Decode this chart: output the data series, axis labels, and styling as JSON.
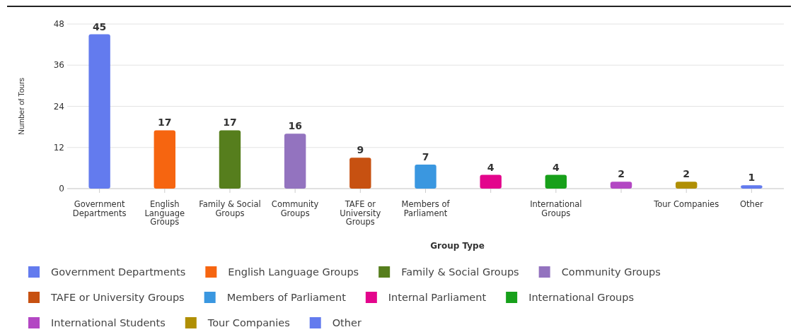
{
  "chart_data": {
    "type": "bar",
    "xlabel": "Group Type",
    "ylabel": "Number of Tours",
    "categories": [
      "Government Departments",
      "English Language Groups",
      "Family & Social Groups",
      "Community Groups",
      "TAFE or University Groups",
      "Members of Parliament",
      null,
      "International Groups",
      null,
      "Tour Companies",
      "Other"
    ],
    "series": [
      {
        "name": "Government Departments",
        "color": "#637bee",
        "values": [
          45,
          null,
          null,
          null,
          null,
          null,
          null,
          null,
          null,
          null,
          null
        ]
      },
      {
        "name": "English Language Groups",
        "color": "#f66510",
        "values": [
          null,
          17,
          null,
          null,
          null,
          null,
          null,
          null,
          null,
          null,
          null
        ]
      },
      {
        "name": "Family & Social Groups",
        "color": "#567e1d",
        "values": [
          null,
          null,
          17,
          null,
          null,
          null,
          null,
          null,
          null,
          null,
          null
        ]
      },
      {
        "name": "Community Groups",
        "color": "#9373bf",
        "values": [
          null,
          null,
          null,
          16,
          null,
          null,
          null,
          null,
          null,
          null,
          null
        ]
      },
      {
        "name": "TAFE or University Groups",
        "color": "#c75111",
        "values": [
          null,
          null,
          null,
          null,
          9,
          null,
          null,
          null,
          null,
          null,
          null
        ]
      },
      {
        "name": "Members of Parliament",
        "color": "#3a97e0",
        "values": [
          null,
          null,
          null,
          null,
          null,
          7,
          null,
          null,
          null,
          null,
          null
        ]
      },
      {
        "name": "Internal Parliament",
        "color": "#e3058c",
        "values": [
          null,
          null,
          null,
          null,
          null,
          null,
          4,
          null,
          null,
          null,
          null
        ]
      },
      {
        "name": "International Groups",
        "color": "#17a01a",
        "values": [
          null,
          null,
          null,
          null,
          null,
          null,
          null,
          4,
          null,
          null,
          null
        ]
      },
      {
        "name": "International Students",
        "color": "#b347c3",
        "values": [
          null,
          null,
          null,
          null,
          null,
          null,
          null,
          null,
          2,
          null,
          null
        ]
      },
      {
        "name": "Tour Companies",
        "color": "#b08f03",
        "values": [
          null,
          null,
          null,
          null,
          null,
          null,
          null,
          null,
          null,
          2,
          null
        ]
      },
      {
        "name": "Other",
        "color": "#637bee",
        "values": [
          null,
          null,
          null,
          null,
          null,
          null,
          null,
          null,
          null,
          null,
          1
        ]
      }
    ],
    "ylim": [
      0,
      48
    ],
    "yticks": [
      0,
      12,
      24,
      36,
      48
    ],
    "grid": "y",
    "data_labels": true,
    "legend": "bottom"
  }
}
